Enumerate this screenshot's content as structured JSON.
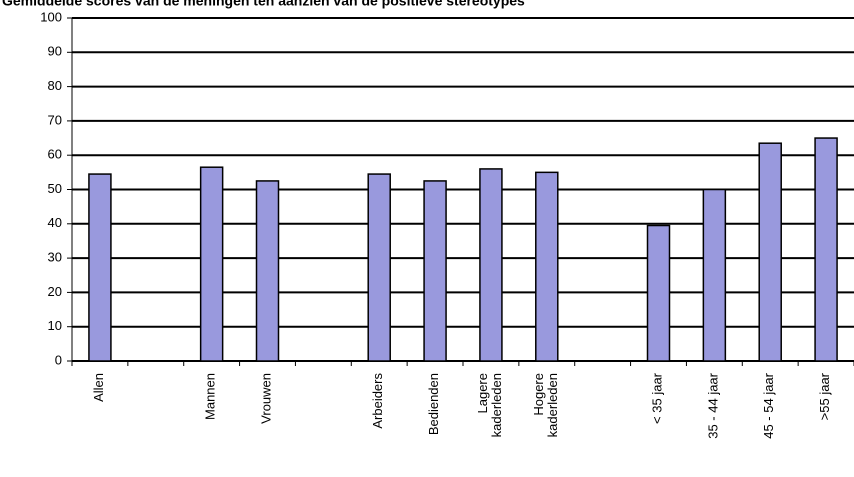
{
  "chart_data": {
    "type": "bar",
    "title": "Gemiddelde scores van de meningen ten aanzien van de positieve stereotypes",
    "categories": [
      "Allen",
      null,
      "Mannen",
      "Vrouwen",
      null,
      "Arbeiders",
      "Bedienden",
      "Lagere\nkaderleden",
      "Hogere\nkaderleden",
      null,
      "< 35 jaar",
      "35 - 44 jaar",
      "45 - 54 jaar",
      ">55 jaar"
    ],
    "values": [
      54.5,
      null,
      56.5,
      52.5,
      null,
      54.5,
      52.5,
      56,
      55,
      null,
      39.5,
      50,
      63.5,
      65
    ],
    "color": "#9999dd",
    "ylim": [
      0,
      100
    ],
    "yticks": [
      0,
      10,
      20,
      30,
      40,
      50,
      60,
      70,
      80,
      90,
      100
    ],
    "grid": true
  }
}
